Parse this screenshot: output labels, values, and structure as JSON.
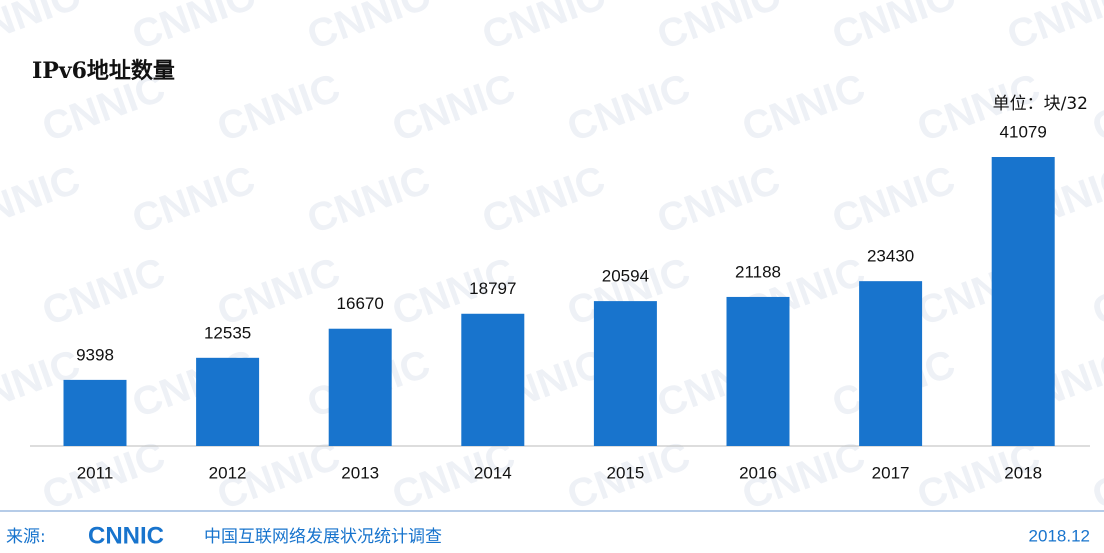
{
  "chart_data": {
    "type": "bar",
    "title": "IPv6地址数量",
    "unit": "单位：块/32",
    "categories": [
      "2011",
      "2012",
      "2013",
      "2014",
      "2015",
      "2016",
      "2017",
      "2018"
    ],
    "values": [
      9398,
      12535,
      16670,
      18797,
      20594,
      21188,
      23430,
      41079
    ],
    "color": "#1874cd",
    "watermark": "CNNIC",
    "source_label": "来源:",
    "source_logo": "CNNIC",
    "source_name": "中国互联网络发展状况统计调查",
    "date": "2018.12"
  }
}
